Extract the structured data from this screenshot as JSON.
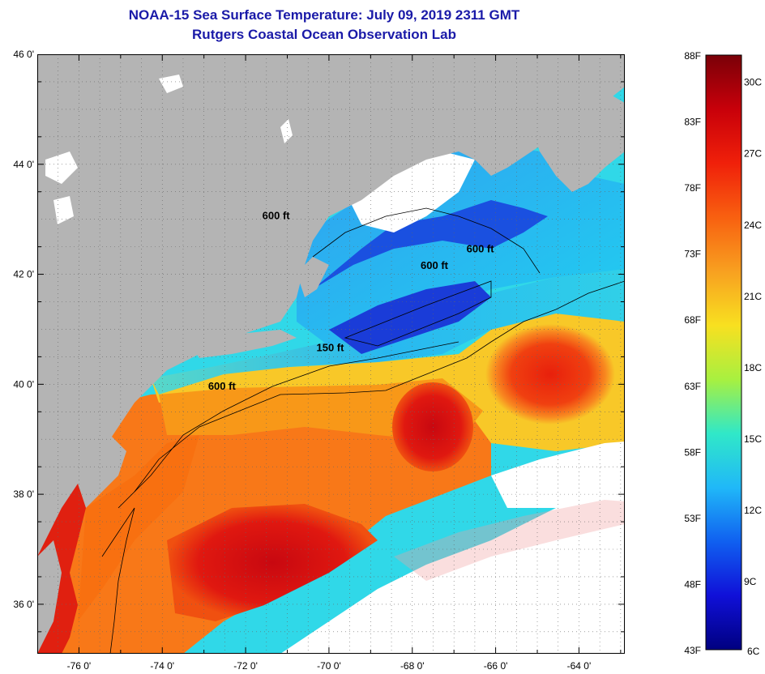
{
  "title_line1": "NOAA-15 Sea Surface Temperature:  July 09, 2019 2311 GMT",
  "title_line2": "Rutgers Coastal Ocean Observation Lab",
  "lat_labels": [
    "46 0'",
    "44 0'",
    "42 0'",
    "40 0'",
    "38 0'",
    "36 0'"
  ],
  "lon_labels": [
    "-76 0'",
    "-74 0'",
    "-72 0'",
    "-70 0'",
    "-68 0'",
    "-66 0'",
    "-64 0'"
  ],
  "lat_values": [
    46,
    44,
    42,
    40,
    38,
    36
  ],
  "lon_values": [
    -76,
    -74,
    -72,
    -70,
    -68,
    -66,
    -64
  ],
  "contour_labels": [
    {
      "text": "600 ft",
      "lon": -71.6,
      "lat": 43.0
    },
    {
      "text": "600 ft",
      "lon": -66.7,
      "lat": 42.4
    },
    {
      "text": "600 ft",
      "lon": -67.8,
      "lat": 42.1
    },
    {
      "text": "150 ft",
      "lon": -70.3,
      "lat": 40.6
    },
    {
      "text": "600 ft",
      "lon": -72.9,
      "lat": 39.9
    }
  ],
  "colorbar": {
    "fahrenheit_labels": [
      "88F",
      "83F",
      "78F",
      "73F",
      "68F",
      "63F",
      "58F",
      "53F",
      "48F",
      "43F"
    ],
    "celsius_labels": [
      "30C",
      "27C",
      "24C",
      "21C",
      "18C",
      "15C",
      "12C",
      "9C",
      "6C"
    ],
    "fahrenheit_values": [
      88,
      83,
      78,
      73,
      68,
      63,
      58,
      53,
      48,
      43
    ],
    "celsius_values": [
      30,
      27,
      24,
      21,
      18,
      15,
      12,
      9,
      6
    ],
    "min_f": 43,
    "max_f": 88,
    "gradient_colors": [
      "#7a0008",
      "#c8000a",
      "#f0200a",
      "#f86010",
      "#f8a020",
      "#f8e020",
      "#a8f040",
      "#30e8c8",
      "#20b8f8",
      "#1060f0",
      "#1010d8",
      "#000080"
    ]
  },
  "colors": {
    "land": "#b4b4b4",
    "cloud": "#ffffff",
    "title": "#1a1aa8",
    "bay": "#e02010"
  }
}
